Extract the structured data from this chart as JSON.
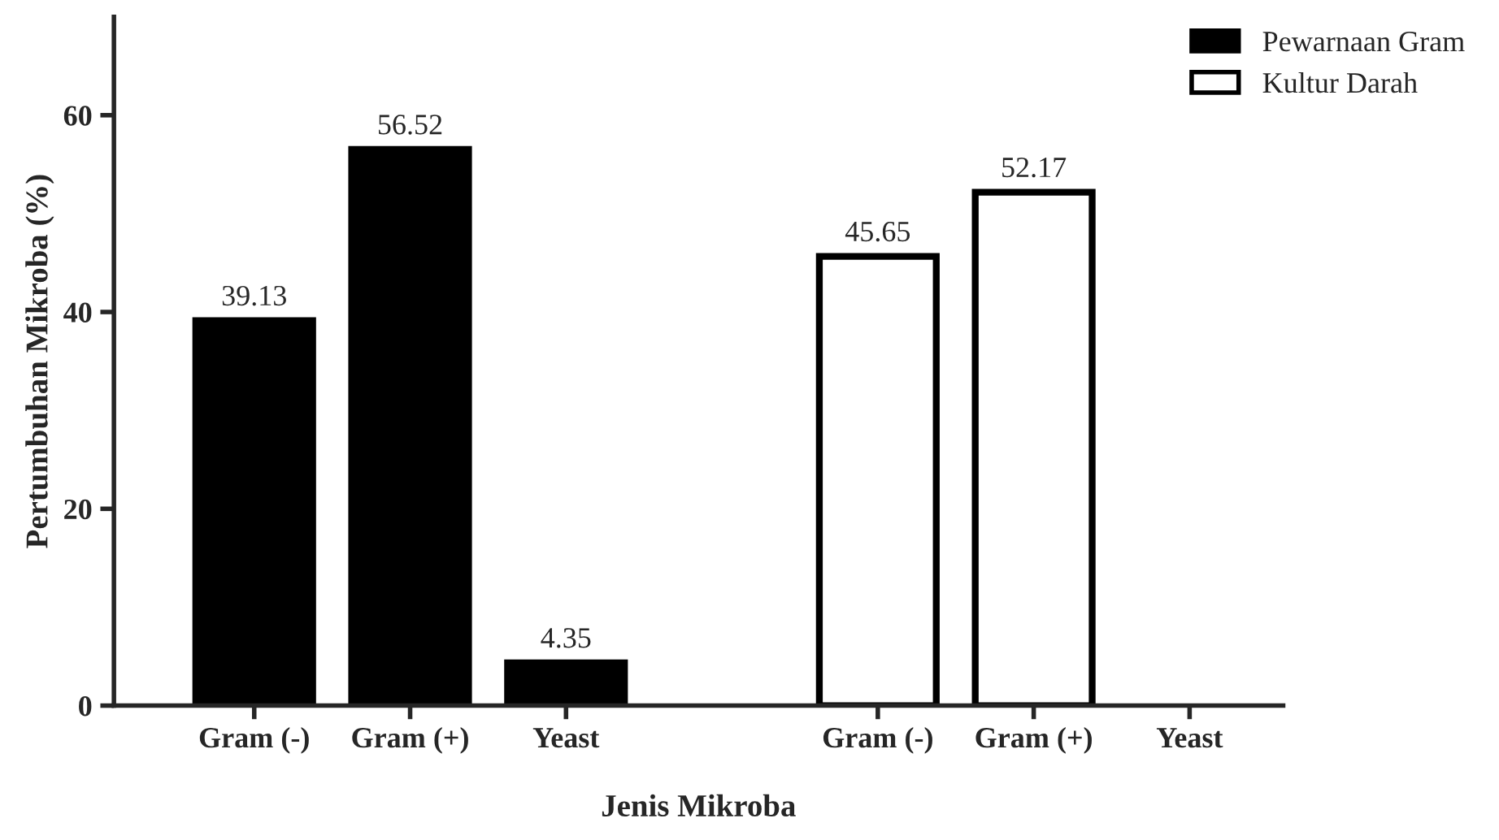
{
  "chart_data": {
    "type": "bar",
    "xlabel": "Jenis Mikroba",
    "ylabel": "Pertumbuhan Mikroba (%)",
    "categories": [
      "Gram (-)",
      "Gram (+)",
      "Yeast",
      null,
      "Gram (-)",
      "Gram (+)",
      "Yeast"
    ],
    "series": [
      {
        "name": "Pewarnaan Gram",
        "color": "#000000",
        "values": [
          39.13,
          56.52,
          4.35,
          null,
          null,
          null,
          null
        ],
        "value_labels": [
          "39.13",
          "56.52",
          "4.35",
          null,
          null,
          null,
          null
        ]
      },
      {
        "name": "Kultur Darah",
        "color": "#ffffff",
        "values": [
          null,
          null,
          null,
          null,
          45.65,
          52.17,
          null
        ],
        "value_labels": [
          null,
          null,
          null,
          null,
          "45.65",
          "52.17",
          null
        ]
      }
    ],
    "ylim": [
      0,
      70
    ],
    "yticks": [
      0,
      20,
      40,
      60
    ],
    "grid": false,
    "legend": "top right"
  }
}
